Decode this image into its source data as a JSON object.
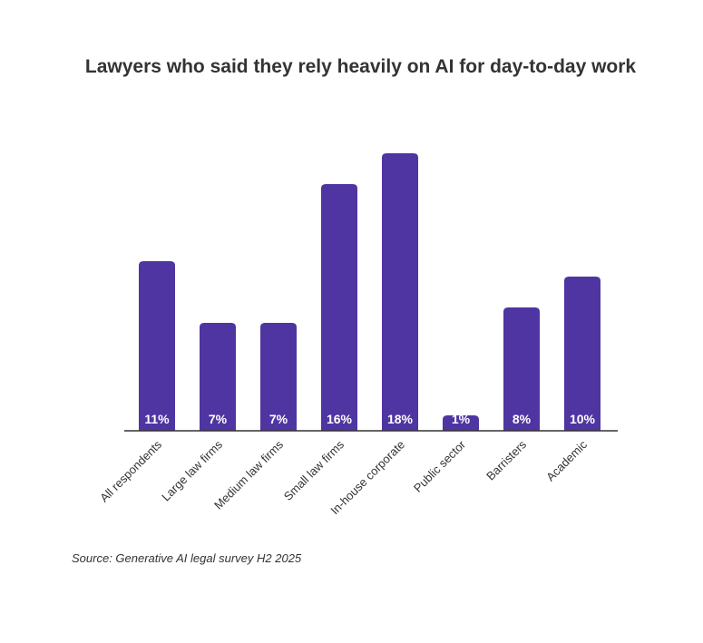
{
  "chart_data": {
    "type": "bar",
    "title": "Lawyers who said they rely heavily on AI for day-to-day work",
    "categories": [
      "All respondents",
      "Large law firms",
      "Medium law firms",
      "Small law firms",
      "In-house corporate",
      "Public sector",
      "Barristers",
      "Academic"
    ],
    "values": [
      11,
      7,
      7,
      16,
      18,
      1,
      8,
      10
    ],
    "value_labels": [
      "11%",
      "7%",
      "7%",
      "16%",
      "18%",
      "1%",
      "8%",
      "10%"
    ],
    "xlabel": "",
    "ylabel": "",
    "ylim": [
      0,
      18
    ],
    "grid": false,
    "legend": "none",
    "bar_color": "#4f35a1",
    "label_color": "#ffffff",
    "axis_color": "#333333"
  },
  "source": "Source: Generative AI legal survey H2 2025"
}
